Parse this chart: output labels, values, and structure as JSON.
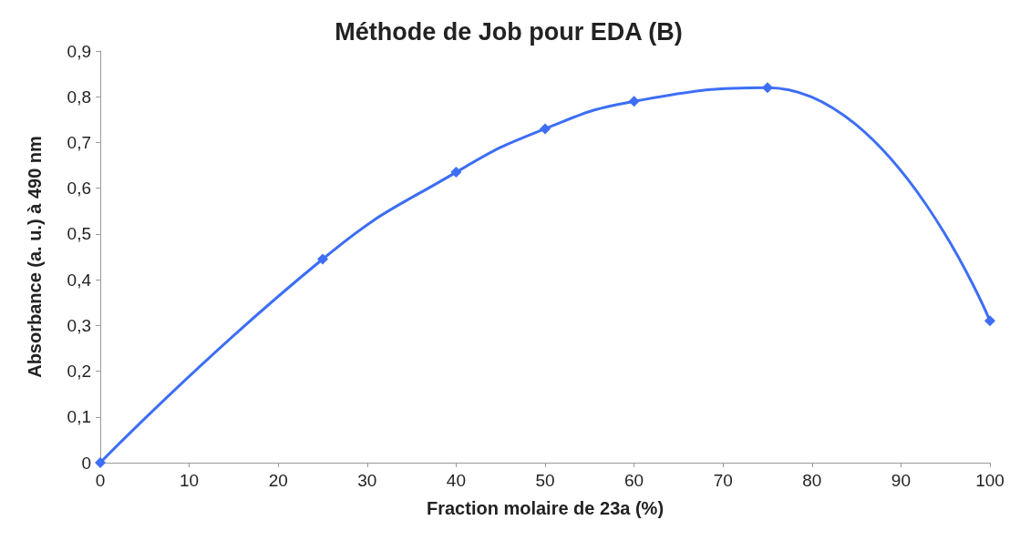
{
  "chart_data": {
    "type": "line",
    "title": "Méthode de Job pour EDA (B)",
    "xlabel": "Fraction molaire de 23a (%)",
    "ylabel": "Absorbance (a. u.) à 490 nm",
    "x": [
      0,
      25,
      40,
      50,
      60,
      75,
      100
    ],
    "series": [
      {
        "color": "#3d6ef5",
        "values": [
          0,
          0.445,
          0.635,
          0.73,
          0.79,
          0.82,
          0.31
        ]
      }
    ],
    "xlim": [
      0,
      100
    ],
    "xticks": [
      0,
      10,
      20,
      30,
      40,
      50,
      60,
      70,
      80,
      90,
      100
    ],
    "ylim": [
      0,
      0.9
    ],
    "yticks": [
      0,
      {
        "value": 0.1,
        "label": "0,1"
      },
      {
        "value": 0.2,
        "label": "0,2"
      },
      {
        "value": 0.3,
        "label": "0,3"
      },
      {
        "value": 0.4,
        "label": "0,4"
      },
      {
        "value": 0.5,
        "label": "0,5"
      },
      {
        "value": 0.6,
        "label": "0,6"
      },
      {
        "value": 0.7,
        "label": "0,7"
      },
      {
        "value": 0.8,
        "label": "0,8"
      },
      {
        "value": 0.9,
        "label": "0,9"
      }
    ],
    "grid": false,
    "marker": "diamond",
    "line_style": "solid"
  }
}
